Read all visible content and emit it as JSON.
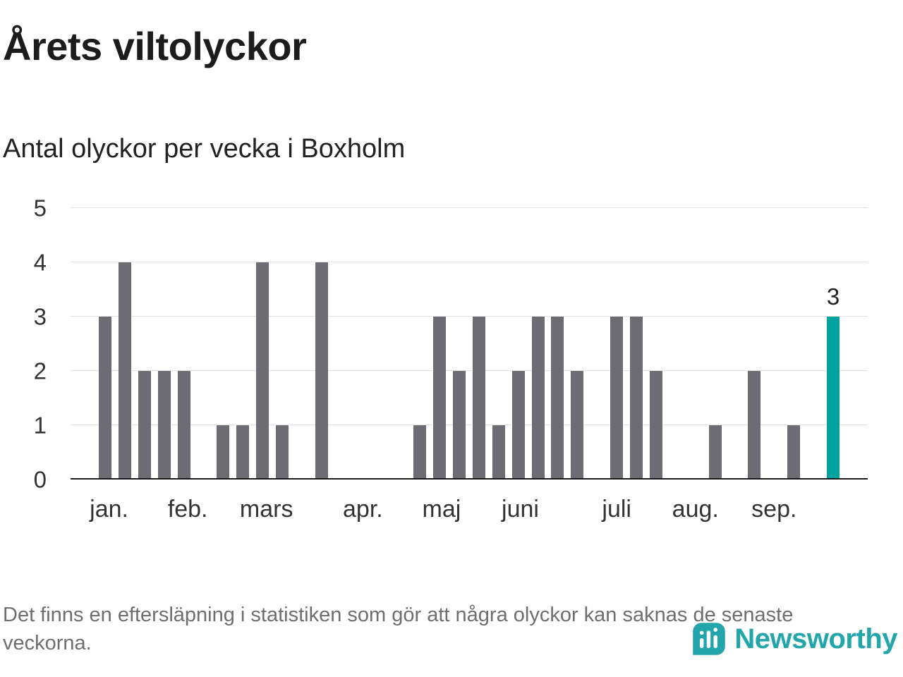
{
  "header": {
    "title": "Årets viltolyckor",
    "subtitle": "Antal olyckor per vecka i Boxholm"
  },
  "footer": {
    "note": "Det finns en eftersläpning i statistiken som gör att några olyckor kan saknas de senaste veckorna.",
    "brand": "Newsworthy"
  },
  "colors": {
    "bar": "#6E6C73",
    "accent": "#00A29E",
    "logo": "#22A6AB",
    "grid": "#E2E2E2",
    "axis": "#1A1A1A",
    "muted": "#6E6E6E"
  },
  "chart_data": {
    "type": "bar",
    "title": "Årets viltolyckor",
    "subtitle": "Antal olyckor per vecka i Boxholm",
    "xlabel": "",
    "ylabel": "",
    "x_unit": "week",
    "x": [
      1,
      2,
      3,
      4,
      5,
      6,
      7,
      8,
      9,
      10,
      11,
      12,
      13,
      14,
      15,
      16,
      17,
      18,
      19,
      20,
      21,
      22,
      23,
      24,
      25,
      26,
      27,
      28,
      29,
      30,
      31,
      32,
      33,
      34,
      35,
      36,
      37,
      38
    ],
    "values": [
      3,
      4,
      2,
      2,
      2,
      0,
      1,
      1,
      4,
      1,
      0,
      4,
      0,
      0,
      0,
      0,
      1,
      3,
      2,
      3,
      1,
      2,
      3,
      3,
      2,
      0,
      3,
      3,
      2,
      0,
      0,
      1,
      0,
      2,
      0,
      1,
      0,
      3
    ],
    "highlight_index": 37,
    "highlight_label": "3",
    "ylim": [
      0,
      5
    ],
    "yticks": [
      0,
      1,
      2,
      3,
      4,
      5
    ],
    "grid": "horizontal",
    "legend": "none",
    "month_ticks": [
      {
        "label": "jan.",
        "week": 1.2
      },
      {
        "label": "feb.",
        "week": 5.2
      },
      {
        "label": "mars",
        "week": 9.2
      },
      {
        "label": "apr.",
        "week": 14.1
      },
      {
        "label": "maj",
        "week": 18.1
      },
      {
        "label": "juni",
        "week": 22.1
      },
      {
        "label": "juli",
        "week": 27.0
      },
      {
        "label": "aug.",
        "week": 31.0
      },
      {
        "label": "sep.",
        "week": 35.0
      }
    ]
  }
}
